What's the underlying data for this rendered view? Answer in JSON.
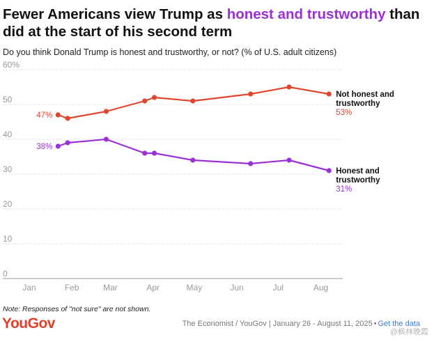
{
  "header": {
    "title_part1": "Fewer Americans view Trump as ",
    "title_highlight": "honest and trustworthy",
    "title_part2": " than did at the start of his second term",
    "subtitle": "Do you think Donald Trump is honest and trustworthy, or not? (% of U.S. adult citizens)"
  },
  "footer": {
    "note": "Note: Responses of \"not sure\" are not shown.",
    "logo": "YouGov",
    "source": "The Economist / YouGov | January 26 - August 11, 2025",
    "link": "Get the data",
    "watermark": "@枫林晚霞"
  },
  "colors": {
    "not_honest": "#e0452e",
    "honest": "#9b30d9",
    "grid": "#dddddd",
    "axis_text": "#999999"
  },
  "chart_data": {
    "type": "line",
    "title": "Fewer Americans view Trump as honest and trustworthy than did at the start of his second term",
    "x_ticks": [
      "Jan",
      "Feb",
      "Mar",
      "Apr",
      "May",
      "Jun",
      "Jul",
      "Aug"
    ],
    "xlim": [
      "2025-01-01",
      "2025-08-20"
    ],
    "ylim": [
      0,
      60
    ],
    "y_ticks": [
      "0",
      "10",
      "20",
      "30",
      "40",
      "50",
      "60%"
    ],
    "grid": true,
    "legend": "direct labels at right end of lines",
    "series": [
      {
        "name": "Not honest and trustworthy",
        "color": "#e0452e",
        "dates": [
          "2025-01-26",
          "2025-02-02",
          "2025-03-02",
          "2025-03-30",
          "2025-04-06",
          "2025-05-04",
          "2025-06-15",
          "2025-07-13",
          "2025-08-11"
        ],
        "values": [
          47,
          46,
          48,
          51,
          52,
          51,
          53,
          55,
          53
        ],
        "start_label": "47%",
        "end_label": "53%"
      },
      {
        "name": "Honest and trustworthy",
        "color": "#9b30d9",
        "dates": [
          "2025-01-26",
          "2025-02-02",
          "2025-03-02",
          "2025-03-30",
          "2025-04-06",
          "2025-05-04",
          "2025-06-15",
          "2025-07-13",
          "2025-08-11"
        ],
        "values": [
          38,
          39,
          40,
          36,
          36,
          34,
          33,
          34,
          31
        ],
        "start_label": "38%",
        "end_label": "31%"
      }
    ]
  }
}
